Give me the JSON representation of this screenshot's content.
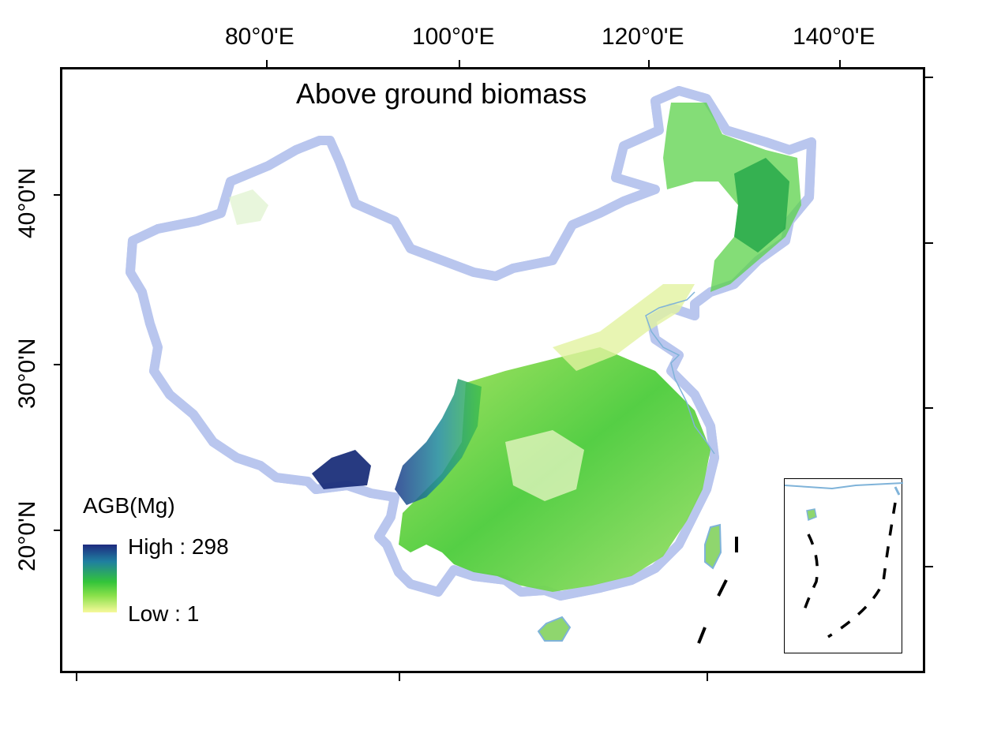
{
  "map": {
    "title": "Above ground biomass",
    "longitude_labels": [
      "80°0'E",
      "100°0'E",
      "120°0'E",
      "140°0'E"
    ],
    "latitude_labels": [
      "40°0'N",
      "30°0'N",
      "20°0'N"
    ],
    "legend": {
      "title": "AGB(Mg)",
      "high_label": "High : 298",
      "low_label": "Low : 1",
      "colors": [
        "#1e2b7f",
        "#1f7fa0",
        "#33c43a",
        "#88e04a",
        "#f7f99b"
      ]
    },
    "colors": {
      "boundary_halo": "#b9c6ee",
      "boundary_line": "#000000",
      "coastline": "#7fb3d9"
    }
  }
}
